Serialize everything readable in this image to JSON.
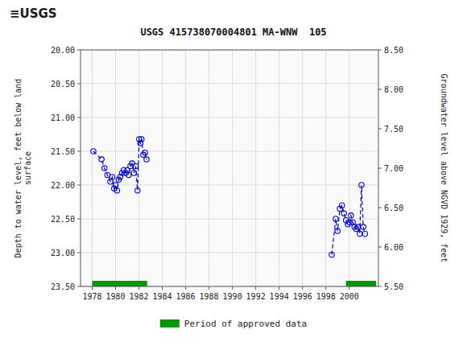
{
  "chart_data": {
    "type": "line",
    "header": "≡USGS",
    "title": "USGS 415738070004801 MA-WNW  105",
    "y_label": "Depth to water level, feet below land\nsurface",
    "y2_label": "Groundwater level above NGVD 1929, feet",
    "xlim": [
      1977.0,
      2002.5
    ],
    "xticks": [
      1978,
      1980,
      1982,
      1984,
      1986,
      1988,
      1990,
      1992,
      1994,
      1996,
      1998,
      2000
    ],
    "ylim": [
      23.5,
      20.0
    ],
    "yticks": [
      {
        "value": 20.0,
        "label": "20.00"
      },
      {
        "value": 20.5,
        "label": "20.50"
      },
      {
        "value": 21.0,
        "label": "21.00"
      },
      {
        "value": 21.5,
        "label": "21.50"
      },
      {
        "value": 22.0,
        "label": "22.00"
      },
      {
        "value": 22.5,
        "label": "22.50"
      },
      {
        "value": 23.0,
        "label": "23.00"
      },
      {
        "value": 23.5,
        "label": "23.50"
      }
    ],
    "y2lim": [
      5.5,
      8.5
    ],
    "y2ticks": [
      {
        "value": 8.5,
        "label": "8.50"
      },
      {
        "value": 8.0,
        "label": "8.00"
      },
      {
        "value": 7.5,
        "label": "7.50"
      },
      {
        "value": 7.0,
        "label": "7.00"
      },
      {
        "value": 6.5,
        "label": "6.50"
      },
      {
        "value": 6.0,
        "label": "6.00"
      },
      {
        "value": 5.5,
        "label": "5.50"
      }
    ],
    "grid": true,
    "series": [
      {
        "type": "line",
        "color": "#0000cc",
        "marker": "open-circle",
        "line_style": "dashed",
        "x": [
          1978.1,
          1978.8,
          1979.05,
          1979.3,
          1979.55,
          1979.72,
          1979.88,
          1980.0,
          1980.12,
          1980.27,
          1980.4,
          1980.55,
          1980.7,
          1980.85,
          1981.0,
          1981.12,
          1981.27,
          1981.42,
          1981.57,
          1981.72,
          1981.88,
          1982.02,
          1982.12,
          1982.22,
          1982.37,
          1982.52,
          1982.65
        ],
        "values": [
          21.5,
          21.62,
          21.75,
          21.85,
          21.95,
          21.88,
          22.05,
          22.0,
          22.08,
          21.92,
          21.88,
          21.82,
          21.78,
          21.82,
          21.78,
          21.85,
          21.72,
          21.68,
          21.82,
          21.72,
          22.08,
          21.32,
          21.38,
          21.32,
          21.55,
          21.52,
          21.62
        ]
      },
      {
        "type": "line",
        "color": "#0000cc",
        "marker": "open-circle",
        "line_style": "dashed",
        "x": [
          1998.5,
          1998.85,
          1999.0,
          1999.2,
          1999.38,
          1999.55,
          1999.72,
          1999.88,
          2000.0,
          2000.15,
          2000.3,
          2000.45,
          2000.6,
          2000.75,
          2000.9,
          2001.05,
          2001.2,
          2001.35
        ],
        "values": [
          23.03,
          22.5,
          22.68,
          22.35,
          22.3,
          22.42,
          22.52,
          22.58,
          22.55,
          22.45,
          22.55,
          22.62,
          22.65,
          22.62,
          22.72,
          22.0,
          22.62,
          22.72
        ]
      },
      {
        "type": "span",
        "name": "Period of approved data",
        "color": "#009900",
        "values": [
          [
            1978.0,
            1982.7
          ],
          [
            1999.72,
            2002.3
          ]
        ]
      }
    ]
  }
}
